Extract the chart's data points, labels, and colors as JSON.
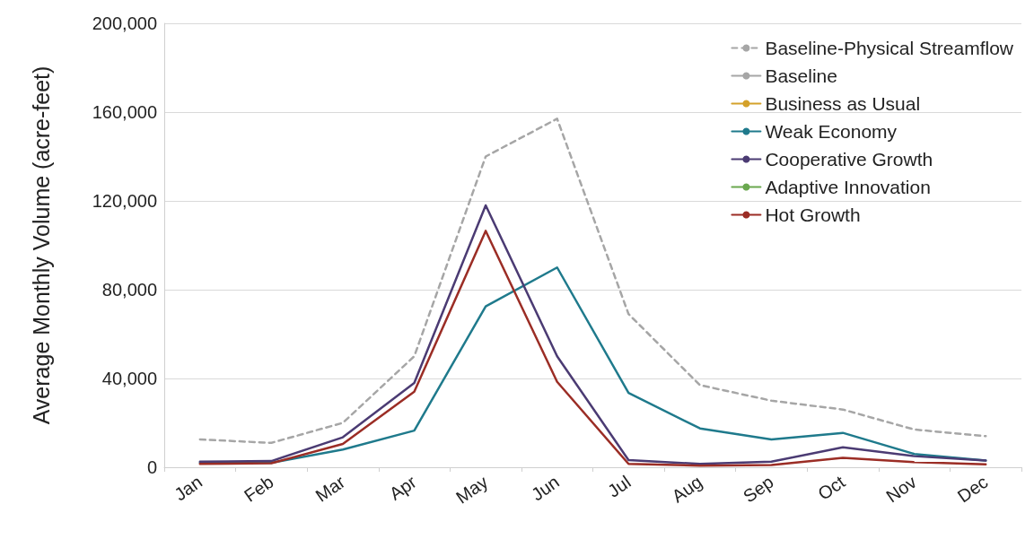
{
  "chart_data": {
    "type": "line",
    "ylabel": "Average Monthly Volume (acre-feet)",
    "categories": [
      "Jan",
      "Feb",
      "Mar",
      "Apr",
      "May",
      "Jun",
      "Jul",
      "Aug",
      "Sep",
      "Oct",
      "Nov",
      "Dec"
    ],
    "ylim": [
      0,
      200000
    ],
    "yticks": [
      {
        "value": 0,
        "label": "0"
      },
      {
        "value": 40000,
        "label": "40,000"
      },
      {
        "value": 80000,
        "label": "80,000"
      },
      {
        "value": 120000,
        "label": "120,000"
      },
      {
        "value": 160000,
        "label": "160,000"
      },
      {
        "value": 200000,
        "label": "200,000"
      }
    ],
    "grid": "y",
    "legend": "top right",
    "marker": "none",
    "series": [
      {
        "name": "Baseline-Physical Streamflow",
        "color": "#a6a6a6",
        "line_style": "dashed",
        "values": [
          12500,
          11000,
          20000,
          50000,
          140000,
          157000,
          69000,
          37000,
          30000,
          26000,
          17000,
          14000
        ]
      },
      {
        "name": "Baseline",
        "color": "#a6a6a6",
        "values": [
          null,
          null,
          null,
          null,
          null,
          null,
          null,
          null,
          null,
          null,
          null,
          null
        ]
      },
      {
        "name": "Business as Usual",
        "color": "#d4a12a",
        "values": [
          null,
          null,
          null,
          null,
          null,
          null,
          null,
          null,
          null,
          null,
          null,
          null
        ]
      },
      {
        "name": "Weak Economy",
        "color": "#1f7a8c",
        "values": [
          2000,
          2000,
          8000,
          16500,
          72500,
          90000,
          33500,
          17500,
          12500,
          15500,
          6000,
          3000
        ]
      },
      {
        "name": "Cooperative Growth",
        "color": "#4b3b73",
        "values": [
          2500,
          2800,
          13500,
          38000,
          118000,
          50000,
          3200,
          1500,
          2500,
          9000,
          5000,
          3000
        ]
      },
      {
        "name": "Adaptive Innovation",
        "color": "#6aa84f",
        "values": [
          null,
          null,
          null,
          null,
          null,
          null,
          null,
          null,
          null,
          null,
          null,
          null
        ]
      },
      {
        "name": "Hot Growth",
        "color": "#9b2d25",
        "values": [
          1500,
          1800,
          10500,
          34000,
          106500,
          38500,
          1500,
          700,
          1000,
          4200,
          2300,
          1300
        ]
      }
    ]
  }
}
